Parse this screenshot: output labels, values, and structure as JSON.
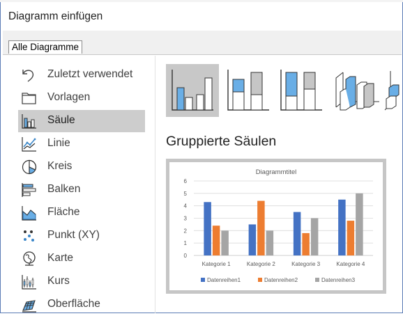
{
  "dialog": {
    "title": "Diagramm einfügen"
  },
  "tabs": [
    {
      "label": "Alle Diagramme"
    }
  ],
  "sidebar": {
    "items": [
      {
        "label": "Zuletzt verwendet",
        "icon": "undo-icon"
      },
      {
        "label": "Vorlagen",
        "icon": "folder-icon"
      },
      {
        "label": "Säule",
        "icon": "column-chart-icon",
        "selected": true
      },
      {
        "label": "Linie",
        "icon": "line-chart-icon"
      },
      {
        "label": "Kreis",
        "icon": "pie-chart-icon"
      },
      {
        "label": "Balken",
        "icon": "bar-chart-icon"
      },
      {
        "label": "Fläche",
        "icon": "area-chart-icon"
      },
      {
        "label": "Punkt (XY)",
        "icon": "scatter-chart-icon"
      },
      {
        "label": "Karte",
        "icon": "map-chart-icon"
      },
      {
        "label": "Kurs",
        "icon": "stock-chart-icon"
      },
      {
        "label": "Oberfläche",
        "icon": "surface-chart-icon"
      }
    ]
  },
  "subtypes": {
    "selected": "Gruppierte Säulen",
    "items": [
      {
        "icon": "clustered-column-icon",
        "selected": true
      },
      {
        "icon": "stacked-column-icon"
      },
      {
        "icon": "stacked-100-column-icon"
      },
      {
        "icon": "3d-clustered-column-icon"
      },
      {
        "icon": "3d-column-icon"
      }
    ]
  },
  "colors": {
    "accent_blue": "#4472c4",
    "orange": "#ed7d31",
    "gray": "#a5a5a5",
    "icon_blue": "#69aee6"
  },
  "chart_data": {
    "type": "bar",
    "title": "Diagrammtitel",
    "categories": [
      "Kategorie 1",
      "Kategorie 2",
      "Kategorie 3",
      "Kategorie 4"
    ],
    "series": [
      {
        "name": "Datenreihen1",
        "values": [
          4.3,
          2.5,
          3.5,
          4.5
        ],
        "color": "#4472c4"
      },
      {
        "name": "Datenreihen2",
        "values": [
          2.4,
          4.4,
          1.8,
          2.8
        ],
        "color": "#ed7d31"
      },
      {
        "name": "Datenreihen3",
        "values": [
          2,
          2,
          3,
          5
        ],
        "color": "#a5a5a5"
      }
    ],
    "yticks": [
      "0",
      "1",
      "2",
      "3",
      "4",
      "5",
      "6"
    ],
    "ylim": [
      0,
      6
    ],
    "grid": true,
    "legend": "bottom"
  }
}
